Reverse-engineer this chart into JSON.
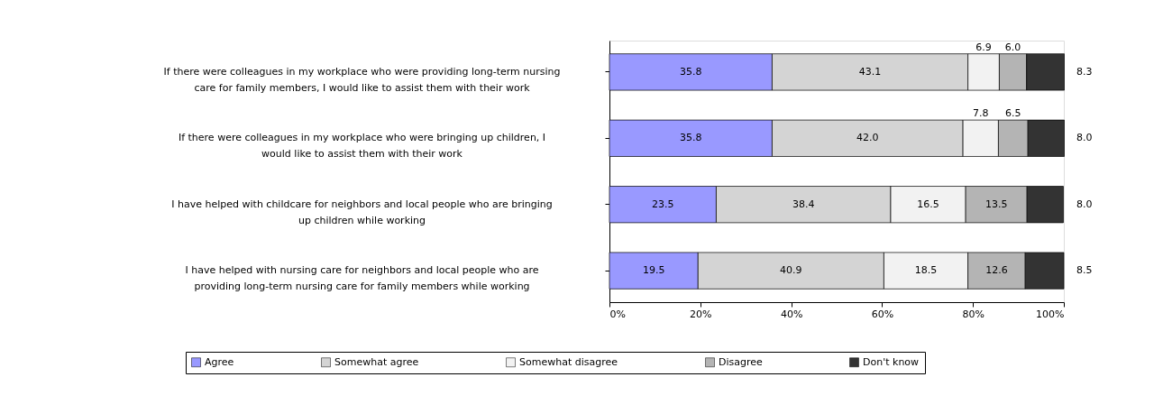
{
  "chart_data": {
    "type": "bar",
    "orientation": "horizontal",
    "stacked": true,
    "legend": "bottom",
    "grid": false,
    "categories": [
      "If there were colleagues in my workplace who were providing long-term nursing care for family members, I would like to assist them with their work",
      "If there were colleagues in my workplace who were bringing up children, I would like to assist them with their work",
      "I have helped with childcare for neighbors and local people who are bringing up children while working",
      "I have helped with nursing care for neighbors and local people who are providing long-term nursing care for family members while working"
    ],
    "series": [
      {
        "name": "Agree",
        "color": "#9999ff",
        "values": [
          35.8,
          35.8,
          23.5,
          19.5
        ],
        "value_labels": [
          "35.8",
          "35.8",
          "23.5",
          "19.5"
        ]
      },
      {
        "name": "Somewhat agree",
        "color": "#d4d4d4",
        "values": [
          43.1,
          42.0,
          38.4,
          40.9
        ],
        "value_labels": [
          "43.1",
          "42.0",
          "38.4",
          "40.9"
        ]
      },
      {
        "name": "Somewhat disagree",
        "color": "#f2f2f2",
        "values": [
          6.9,
          7.8,
          16.5,
          18.5
        ],
        "value_labels": [
          "6.9",
          "7.8",
          "16.5",
          "18.5"
        ]
      },
      {
        "name": "Disagree",
        "color": "#b4b4b4",
        "values": [
          6.0,
          6.5,
          13.5,
          12.6
        ],
        "value_labels": [
          "6.0",
          "6.5",
          "13.5",
          "12.6"
        ]
      },
      {
        "name": "Don't know",
        "color": "#333333",
        "values": [
          8.3,
          8.0,
          8.0,
          8.5
        ],
        "value_labels": [
          "8.3",
          "8.0",
          "8.0",
          "8.5"
        ]
      }
    ],
    "xlim": [
      0,
      100
    ],
    "xticks": [
      {
        "value": 0,
        "label": "0%"
      },
      {
        "value": 20,
        "label": "20%"
      },
      {
        "value": 40,
        "label": "40%"
      },
      {
        "value": 60,
        "label": "60%"
      },
      {
        "value": 80,
        "label": "80%"
      },
      {
        "value": 100,
        "label": "100%"
      }
    ]
  }
}
